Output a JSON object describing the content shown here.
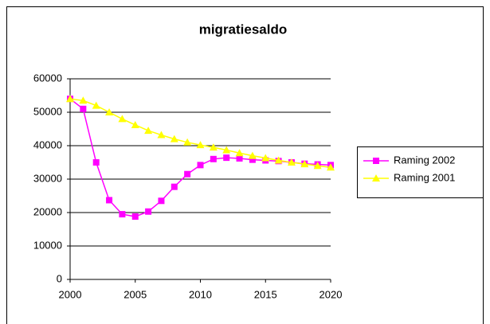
{
  "chart_data": {
    "type": "line",
    "title": "migratiesaldo",
    "x": [
      2000,
      2001,
      2002,
      2003,
      2004,
      2005,
      2006,
      2007,
      2008,
      2009,
      2010,
      2011,
      2012,
      2013,
      2014,
      2015,
      2016,
      2017,
      2018,
      2019,
      2020
    ],
    "series": [
      {
        "name": "Raming 2002",
        "color": "#ff00ff",
        "marker": "square",
        "values": [
          54000,
          51000,
          35000,
          23700,
          19500,
          18800,
          20300,
          23500,
          27700,
          31500,
          34200,
          36000,
          36400,
          36200,
          35800,
          35600,
          35400,
          35000,
          34600,
          34400,
          34200
        ]
      },
      {
        "name": "Raming 2001",
        "color": "#ffff00",
        "marker": "triangle",
        "values": [
          54000,
          53500,
          52000,
          50000,
          48000,
          46200,
          44500,
          43200,
          42000,
          41000,
          40200,
          39500,
          38700,
          37800,
          37000,
          36300,
          35600,
          35000,
          34500,
          34000,
          33500
        ]
      }
    ],
    "xlim": [
      2000,
      2020
    ],
    "xticks": [
      2000,
      2005,
      2010,
      2015,
      2020
    ],
    "ylim": [
      0,
      60000
    ],
    "yticks": [
      0,
      10000,
      20000,
      30000,
      40000,
      50000,
      60000
    ],
    "grid": true,
    "legend": "right"
  }
}
